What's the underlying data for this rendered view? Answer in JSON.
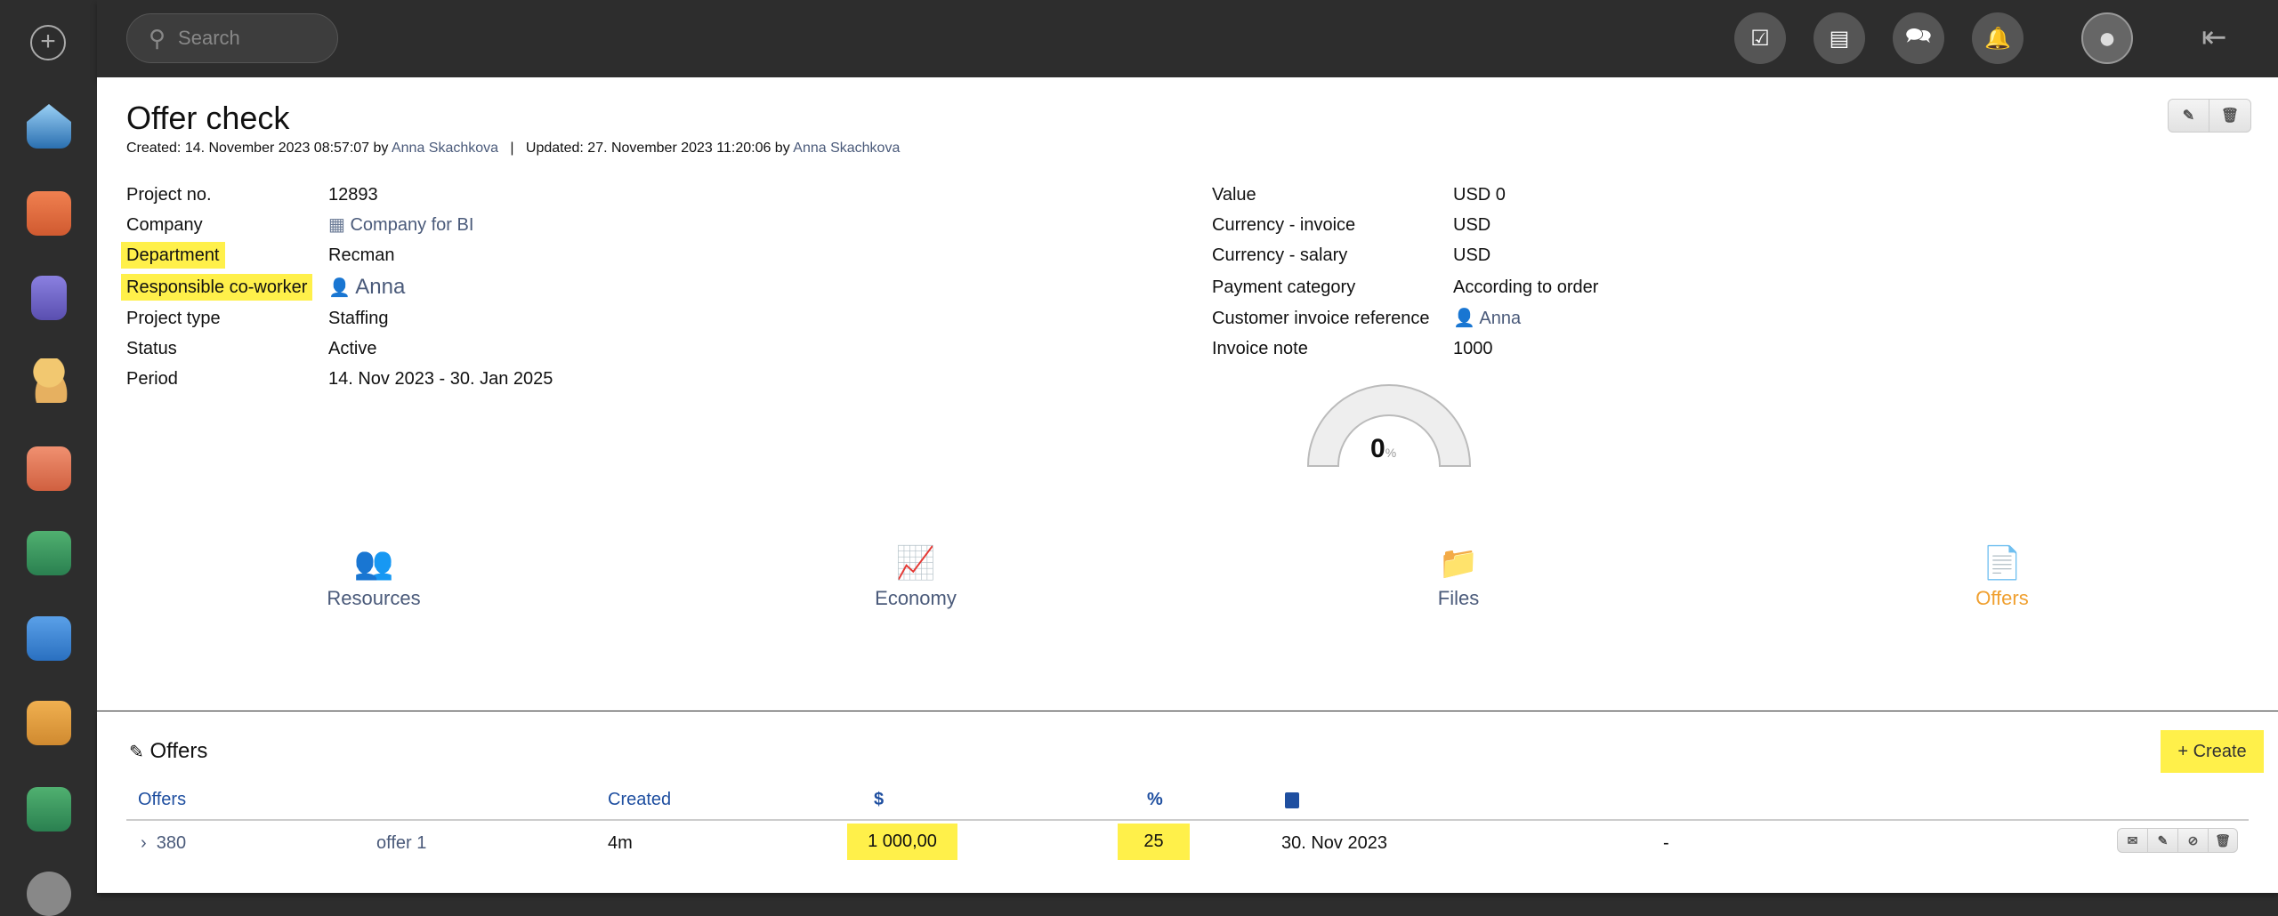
{
  "topbar": {
    "search_placeholder": "Search"
  },
  "page": {
    "title": "Offer check",
    "meta": {
      "created_label": "Created: 14. November 2023 08:57:07 by",
      "created_by": "Anna Skachkova",
      "separator": "|",
      "updated_label": "Updated: 27. November 2023 11:20:06 by",
      "updated_by": "Anna Skachkova"
    }
  },
  "left_fields": [
    {
      "label": "Project no.",
      "value": "12893"
    },
    {
      "label": "Company",
      "value": "Company for BI"
    },
    {
      "label": "Department",
      "value": "Recman"
    },
    {
      "label": "Responsible co-worker",
      "value": "Anna"
    },
    {
      "label": "Project type",
      "value": "Staffing"
    },
    {
      "label": "Status",
      "value": "Active"
    },
    {
      "label": "Period",
      "value": "14. Nov 2023 - 30. Jan 2025"
    }
  ],
  "right_fields": [
    {
      "label": "Value",
      "value": "USD 0"
    },
    {
      "label": "Currency - invoice",
      "value": "USD"
    },
    {
      "label": "Currency - salary",
      "value": "USD"
    },
    {
      "label": "Payment category",
      "value": "According to order"
    },
    {
      "label": "Customer invoice reference",
      "value": "Anna"
    },
    {
      "label": "Invoice note",
      "value": "1000"
    }
  ],
  "gauge": {
    "value": "0",
    "unit": "%",
    "percent": 0
  },
  "nav": [
    {
      "label": "Resources"
    },
    {
      "label": "Economy"
    },
    {
      "label": "Files"
    },
    {
      "label": "Offers",
      "active": true
    }
  ],
  "offers": {
    "title": "Offers",
    "create_label": "+ Create",
    "headers": {
      "offers": "Offers",
      "created": "Created",
      "amount": "$",
      "percent": "%"
    },
    "rows": [
      {
        "id": "380",
        "name": "offer 1",
        "created": "4m",
        "amount": "1 000,00",
        "percent": "25",
        "date": "30. Nov 2023",
        "extra": "-"
      }
    ]
  },
  "colors": {
    "highlight": "#fff04a",
    "link": "#4a5a7a",
    "header": "#1f4fa0",
    "active_nav": "#f0a030"
  }
}
